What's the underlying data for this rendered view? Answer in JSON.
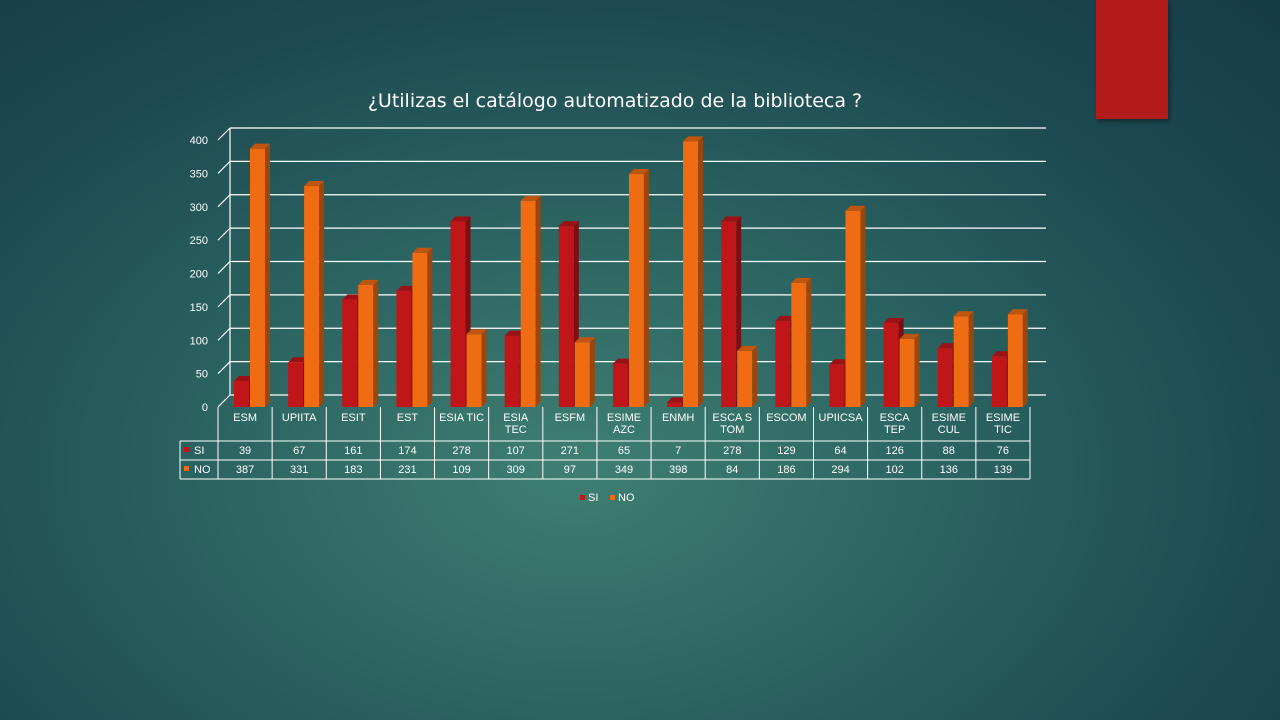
{
  "chart_data": {
    "type": "bar",
    "title": "¿Utilizas el catálogo automatizado de la biblioteca ?",
    "categories": [
      [
        "ESM"
      ],
      [
        "UPIITA"
      ],
      [
        "ESIT"
      ],
      [
        "EST"
      ],
      [
        "ESIA TIC"
      ],
      [
        "ESIA",
        "TEC"
      ],
      [
        "ESFM"
      ],
      [
        "ESIME",
        "AZC"
      ],
      [
        "ENMH"
      ],
      [
        "ESCA S",
        "TOM"
      ],
      [
        "ESCOM"
      ],
      [
        "UPIICSA"
      ],
      [
        "ESCA",
        "TEP"
      ],
      [
        "ESIME",
        "CUL"
      ],
      [
        "ESIME",
        "TIC"
      ]
    ],
    "series": [
      {
        "name": "SI",
        "color": "#c0161a",
        "values": [
          39,
          67,
          161,
          174,
          278,
          107,
          271,
          65,
          7,
          278,
          129,
          64,
          126,
          88,
          76
        ]
      },
      {
        "name": "NO",
        "color": "#ef6c13",
        "values": [
          387,
          331,
          183,
          231,
          109,
          309,
          97,
          349,
          398,
          84,
          186,
          294,
          102,
          136,
          139
        ]
      }
    ],
    "ylim": [
      0,
      400
    ],
    "yticks": [
      0,
      50,
      100,
      150,
      200,
      250,
      300,
      350,
      400
    ],
    "grid": true,
    "legend": "bottom",
    "data_table": true
  },
  "accent_color": "#b31b1b"
}
